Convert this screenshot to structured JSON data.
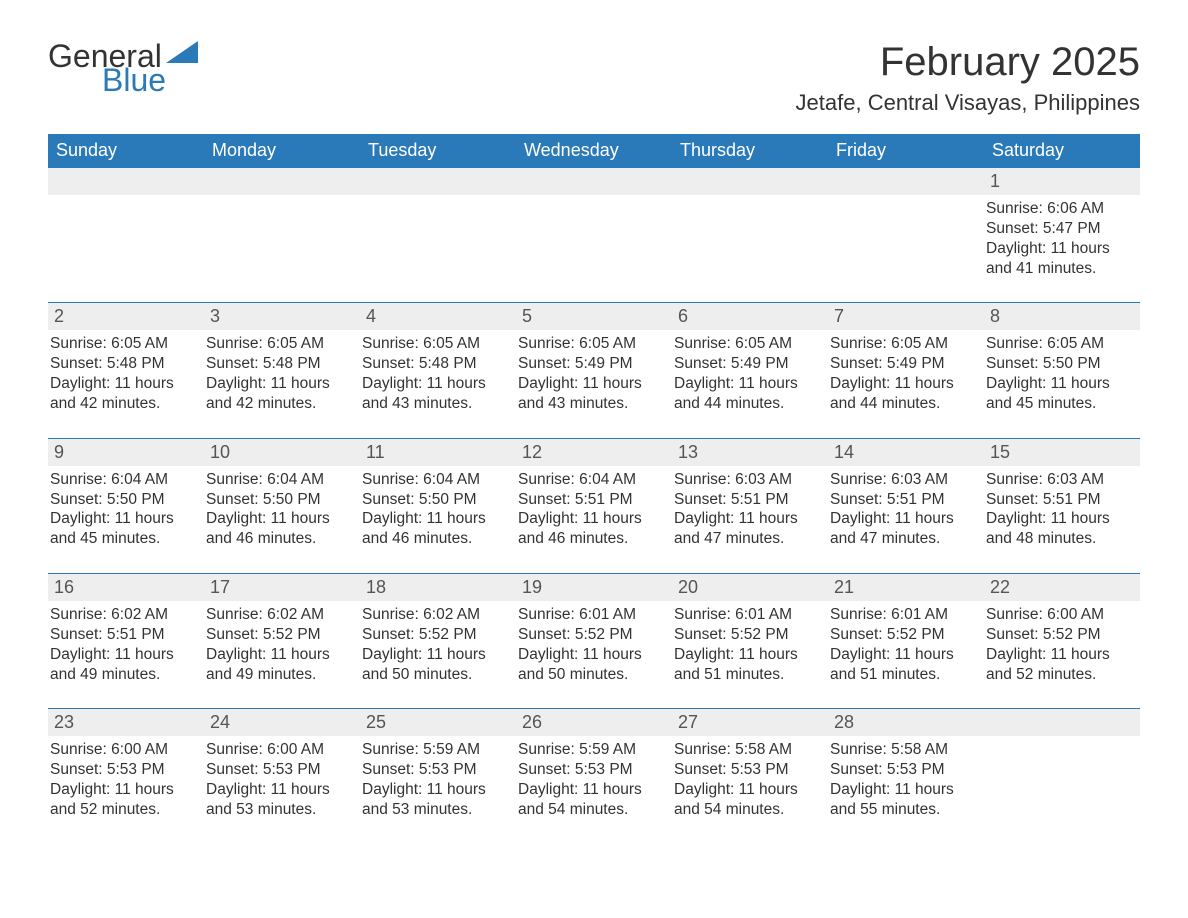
{
  "brand": {
    "part1": "General",
    "part2": "Blue",
    "color": "#2a7ab9"
  },
  "title": "February 2025",
  "subtitle": "Jetafe, Central Visayas, Philippines",
  "colors": {
    "header_bg": "#2a7ab9",
    "header_fg": "#ffffff",
    "daynum_bg": "#eeeeee",
    "daynum_fg": "#555555",
    "row_border": "#2a7ab9",
    "text": "#333333",
    "bg": "#ffffff"
  },
  "calendar": {
    "type": "table",
    "columns": [
      "Sunday",
      "Monday",
      "Tuesday",
      "Wednesday",
      "Thursday",
      "Friday",
      "Saturday"
    ],
    "weeks": [
      [
        null,
        null,
        null,
        null,
        null,
        null,
        {
          "n": "1",
          "sunrise": "6:06 AM",
          "sunset": "5:47 PM",
          "daylight": "11 hours and 41 minutes."
        }
      ],
      [
        {
          "n": "2",
          "sunrise": "6:05 AM",
          "sunset": "5:48 PM",
          "daylight": "11 hours and 42 minutes."
        },
        {
          "n": "3",
          "sunrise": "6:05 AM",
          "sunset": "5:48 PM",
          "daylight": "11 hours and 42 minutes."
        },
        {
          "n": "4",
          "sunrise": "6:05 AM",
          "sunset": "5:48 PM",
          "daylight": "11 hours and 43 minutes."
        },
        {
          "n": "5",
          "sunrise": "6:05 AM",
          "sunset": "5:49 PM",
          "daylight": "11 hours and 43 minutes."
        },
        {
          "n": "6",
          "sunrise": "6:05 AM",
          "sunset": "5:49 PM",
          "daylight": "11 hours and 44 minutes."
        },
        {
          "n": "7",
          "sunrise": "6:05 AM",
          "sunset": "5:49 PM",
          "daylight": "11 hours and 44 minutes."
        },
        {
          "n": "8",
          "sunrise": "6:05 AM",
          "sunset": "5:50 PM",
          "daylight": "11 hours and 45 minutes."
        }
      ],
      [
        {
          "n": "9",
          "sunrise": "6:04 AM",
          "sunset": "5:50 PM",
          "daylight": "11 hours and 45 minutes."
        },
        {
          "n": "10",
          "sunrise": "6:04 AM",
          "sunset": "5:50 PM",
          "daylight": "11 hours and 46 minutes."
        },
        {
          "n": "11",
          "sunrise": "6:04 AM",
          "sunset": "5:50 PM",
          "daylight": "11 hours and 46 minutes."
        },
        {
          "n": "12",
          "sunrise": "6:04 AM",
          "sunset": "5:51 PM",
          "daylight": "11 hours and 46 minutes."
        },
        {
          "n": "13",
          "sunrise": "6:03 AM",
          "sunset": "5:51 PM",
          "daylight": "11 hours and 47 minutes."
        },
        {
          "n": "14",
          "sunrise": "6:03 AM",
          "sunset": "5:51 PM",
          "daylight": "11 hours and 47 minutes."
        },
        {
          "n": "15",
          "sunrise": "6:03 AM",
          "sunset": "5:51 PM",
          "daylight": "11 hours and 48 minutes."
        }
      ],
      [
        {
          "n": "16",
          "sunrise": "6:02 AM",
          "sunset": "5:51 PM",
          "daylight": "11 hours and 49 minutes."
        },
        {
          "n": "17",
          "sunrise": "6:02 AM",
          "sunset": "5:52 PM",
          "daylight": "11 hours and 49 minutes."
        },
        {
          "n": "18",
          "sunrise": "6:02 AM",
          "sunset": "5:52 PM",
          "daylight": "11 hours and 50 minutes."
        },
        {
          "n": "19",
          "sunrise": "6:01 AM",
          "sunset": "5:52 PM",
          "daylight": "11 hours and 50 minutes."
        },
        {
          "n": "20",
          "sunrise": "6:01 AM",
          "sunset": "5:52 PM",
          "daylight": "11 hours and 51 minutes."
        },
        {
          "n": "21",
          "sunrise": "6:01 AM",
          "sunset": "5:52 PM",
          "daylight": "11 hours and 51 minutes."
        },
        {
          "n": "22",
          "sunrise": "6:00 AM",
          "sunset": "5:52 PM",
          "daylight": "11 hours and 52 minutes."
        }
      ],
      [
        {
          "n": "23",
          "sunrise": "6:00 AM",
          "sunset": "5:53 PM",
          "daylight": "11 hours and 52 minutes."
        },
        {
          "n": "24",
          "sunrise": "6:00 AM",
          "sunset": "5:53 PM",
          "daylight": "11 hours and 53 minutes."
        },
        {
          "n": "25",
          "sunrise": "5:59 AM",
          "sunset": "5:53 PM",
          "daylight": "11 hours and 53 minutes."
        },
        {
          "n": "26",
          "sunrise": "5:59 AM",
          "sunset": "5:53 PM",
          "daylight": "11 hours and 54 minutes."
        },
        {
          "n": "27",
          "sunrise": "5:58 AM",
          "sunset": "5:53 PM",
          "daylight": "11 hours and 54 minutes."
        },
        {
          "n": "28",
          "sunrise": "5:58 AM",
          "sunset": "5:53 PM",
          "daylight": "11 hours and 55 minutes."
        },
        null
      ]
    ],
    "labels": {
      "sunrise": "Sunrise: ",
      "sunset": "Sunset: ",
      "daylight": "Daylight: "
    }
  }
}
